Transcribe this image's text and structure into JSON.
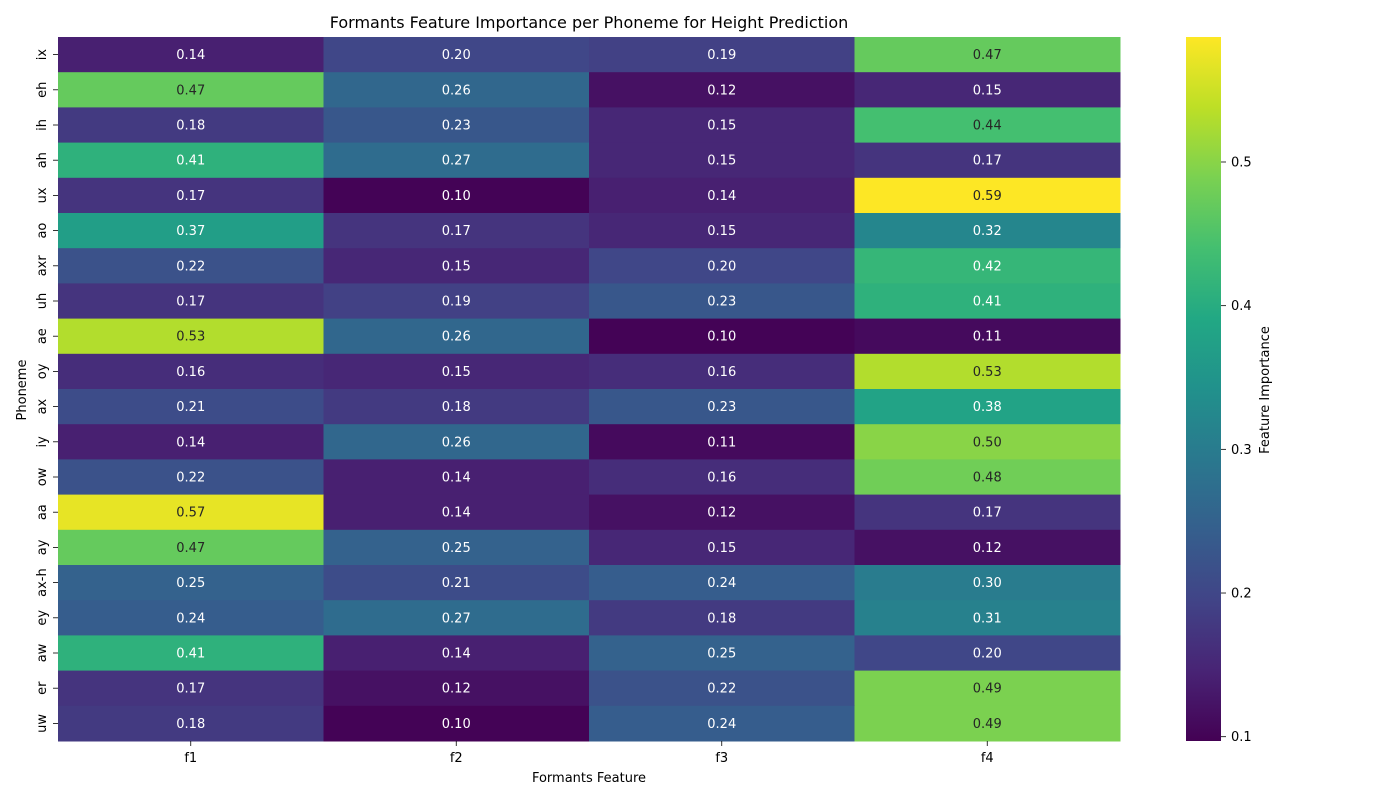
{
  "chart_data": {
    "type": "heatmap",
    "title": "Formants Feature Importance per Phoneme for Height Prediction",
    "xlabel": "Formants Feature",
    "ylabel": "Phoneme",
    "x_categories": [
      "f1",
      "f2",
      "f3",
      "f4"
    ],
    "y_categories": [
      "ix",
      "eh",
      "ih",
      "ah",
      "ux",
      "ao",
      "axr",
      "uh",
      "ae",
      "oy",
      "ax",
      "iy",
      "ow",
      "aa",
      "ay",
      "ax-h",
      "ey",
      "aw",
      "er",
      "uw"
    ],
    "values": [
      [
        0.14,
        0.2,
        0.19,
        0.47
      ],
      [
        0.47,
        0.26,
        0.12,
        0.15
      ],
      [
        0.18,
        0.23,
        0.15,
        0.44
      ],
      [
        0.41,
        0.27,
        0.15,
        0.17
      ],
      [
        0.17,
        0.1,
        0.14,
        0.59
      ],
      [
        0.37,
        0.17,
        0.15,
        0.32
      ],
      [
        0.22,
        0.15,
        0.2,
        0.42
      ],
      [
        0.17,
        0.19,
        0.23,
        0.41
      ],
      [
        0.53,
        0.26,
        0.1,
        0.11
      ],
      [
        0.16,
        0.15,
        0.16,
        0.53
      ],
      [
        0.21,
        0.18,
        0.23,
        0.38
      ],
      [
        0.14,
        0.26,
        0.11,
        0.5
      ],
      [
        0.22,
        0.14,
        0.16,
        0.48
      ],
      [
        0.57,
        0.14,
        0.12,
        0.17
      ],
      [
        0.47,
        0.25,
        0.15,
        0.12
      ],
      [
        0.25,
        0.21,
        0.24,
        0.3
      ],
      [
        0.24,
        0.27,
        0.18,
        0.31
      ],
      [
        0.41,
        0.14,
        0.25,
        0.2
      ],
      [
        0.17,
        0.12,
        0.22,
        0.49
      ],
      [
        0.18,
        0.1,
        0.24,
        0.49
      ]
    ],
    "colormap": "viridis",
    "color_range": [
      0.097,
      0.587
    ],
    "colorbar": {
      "label": "Feature Importance",
      "ticks": [
        0.1,
        0.2,
        0.3,
        0.4,
        0.5
      ],
      "tick_labels": [
        "0.1",
        "0.2",
        "0.3",
        "0.4",
        "0.5"
      ]
    },
    "annotated": true,
    "value_format": "2 decimals"
  }
}
